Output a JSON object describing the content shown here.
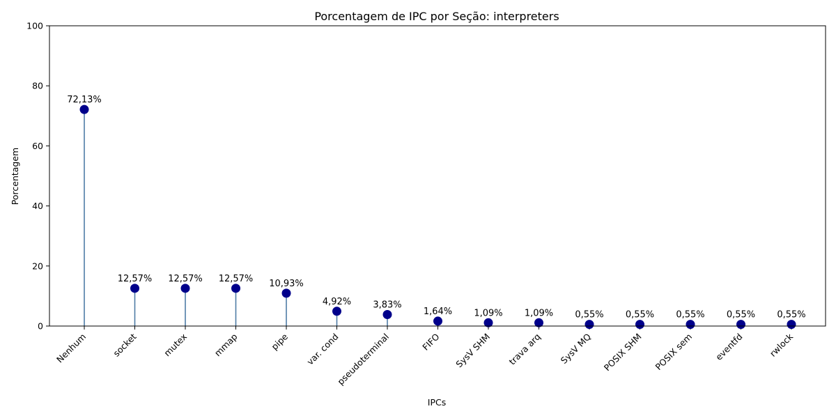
{
  "chart_data": {
    "type": "lollipop",
    "title": "Porcentagem de IPC por Seção: interpreters",
    "xlabel": "IPCs",
    "ylabel": "Porcentagem",
    "ylim": [
      0,
      100
    ],
    "yticks": [
      "0",
      "20",
      "40",
      "60",
      "80",
      "100"
    ],
    "ytick_values": [
      0,
      20,
      40,
      60,
      80,
      100
    ],
    "grid": false,
    "categories": [
      "Nenhum",
      "socket",
      "mutex",
      "mmap",
      "pipe",
      "var. cond",
      "pseudoterminal",
      "FIFO",
      "SysV SHM",
      "trava arq",
      "SysV MQ",
      "POSIX SHM",
      "POSIX sem",
      "eventfd",
      "rwlock"
    ],
    "values": [
      72.13,
      12.57,
      12.57,
      12.57,
      10.93,
      4.92,
      3.83,
      1.64,
      1.09,
      1.09,
      0.55,
      0.55,
      0.55,
      0.55,
      0.55
    ],
    "data_labels": [
      "72,13%",
      "12,57%",
      "12,57%",
      "12,57%",
      "10,93%",
      "4,92%",
      "3,83%",
      "1,64%",
      "1,09%",
      "1,09%",
      "0,55%",
      "0,55%",
      "0,55%",
      "0,55%",
      "0,55%"
    ],
    "marker_color": "#00008b",
    "stem_color": "#4f7ca6"
  }
}
